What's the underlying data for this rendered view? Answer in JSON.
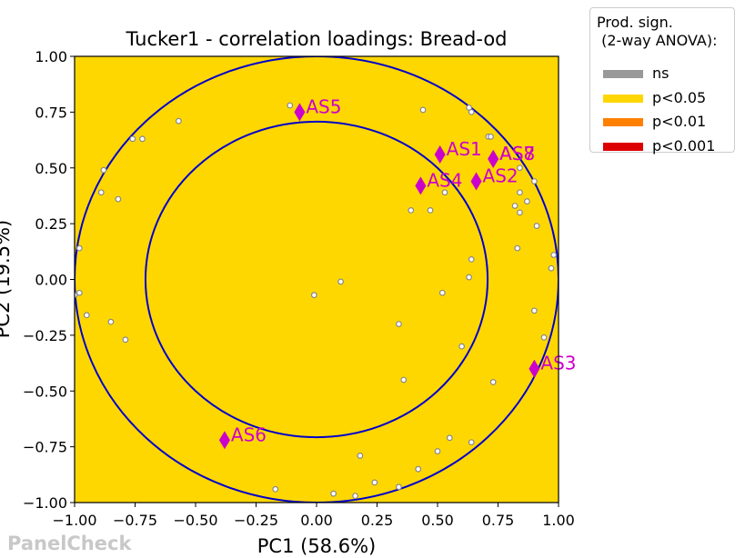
{
  "chart_data": {
    "type": "scatter",
    "title": "Tucker1 - correlation loadings: Bread-od",
    "xlabel": "PC1 (58.6%)",
    "ylabel": "PC2 (19.5%)",
    "xlim": [
      -1.0,
      1.0
    ],
    "ylim": [
      -1.0,
      1.0
    ],
    "xticks": [
      "−1.00",
      "−0.75",
      "−0.50",
      "−0.25",
      "0.00",
      "0.25",
      "0.50",
      "0.75",
      "1.00"
    ],
    "yticks": [
      "−1.00",
      "−0.75",
      "−0.50",
      "−0.25",
      "0.00",
      "0.25",
      "0.50",
      "0.75",
      "1.00"
    ],
    "background_color": "#FFD700",
    "circles": [
      {
        "radius": 1.0,
        "color": "#0000CC"
      },
      {
        "radius": 0.707,
        "color": "#0000CC"
      }
    ],
    "assessors": [
      {
        "label": "AS5",
        "x": -0.07,
        "y": 0.75
      },
      {
        "label": "AS1",
        "x": 0.51,
        "y": 0.56
      },
      {
        "label": "AS7",
        "x": 0.73,
        "y": 0.54
      },
      {
        "label": "AS8",
        "x": 0.73,
        "y": 0.54
      },
      {
        "label": "AS4",
        "x": 0.43,
        "y": 0.42
      },
      {
        "label": "AS2",
        "x": 0.66,
        "y": 0.44
      },
      {
        "label": "AS3",
        "x": 0.9,
        "y": -0.4
      },
      {
        "label": "AS6",
        "x": -0.38,
        "y": -0.72
      }
    ],
    "assessor_color": "#CC00CC",
    "attribute_points": [
      [
        -0.11,
        0.78
      ],
      [
        0.44,
        0.76
      ],
      [
        0.63,
        0.77
      ],
      [
        0.64,
        0.75
      ],
      [
        -0.57,
        0.71
      ],
      [
        -0.76,
        0.63
      ],
      [
        -0.72,
        0.63
      ],
      [
        0.71,
        0.64
      ],
      [
        0.72,
        0.64
      ],
      [
        -0.88,
        0.49
      ],
      [
        0.84,
        0.5
      ],
      [
        0.9,
        0.44
      ],
      [
        -0.89,
        0.39
      ],
      [
        -0.82,
        0.36
      ],
      [
        0.84,
        0.39
      ],
      [
        0.87,
        0.35
      ],
      [
        0.53,
        0.39
      ],
      [
        0.82,
        0.33
      ],
      [
        0.84,
        0.3
      ],
      [
        0.39,
        0.31
      ],
      [
        0.47,
        0.31
      ],
      [
        0.91,
        0.24
      ],
      [
        -0.98,
        0.14
      ],
      [
        0.83,
        0.14
      ],
      [
        0.98,
        0.11
      ],
      [
        0.64,
        0.09
      ],
      [
        0.97,
        0.05
      ],
      [
        0.63,
        0.01
      ],
      [
        0.1,
        -0.01
      ],
      [
        -0.01,
        -0.07
      ],
      [
        -0.98,
        -0.06
      ],
      [
        -1.0,
        -0.07
      ],
      [
        0.52,
        -0.06
      ],
      [
        -0.95,
        -0.16
      ],
      [
        -0.85,
        -0.19
      ],
      [
        0.34,
        -0.2
      ],
      [
        0.9,
        -0.14
      ],
      [
        -0.79,
        -0.27
      ],
      [
        0.94,
        -0.26
      ],
      [
        0.6,
        -0.3
      ],
      [
        0.36,
        -0.45
      ],
      [
        0.73,
        -0.46
      ],
      [
        0.64,
        -0.73
      ],
      [
        0.55,
        -0.71
      ],
      [
        0.5,
        -0.77
      ],
      [
        0.18,
        -0.79
      ],
      [
        0.42,
        -0.85
      ],
      [
        0.24,
        -0.91
      ],
      [
        0.34,
        -0.93
      ],
      [
        -0.17,
        -0.94
      ],
      [
        0.07,
        -0.96
      ],
      [
        0.16,
        -0.97
      ]
    ],
    "legend": {
      "title": "Prod. sign.\n (2-way ANOVA):",
      "placement": "outside-top-right",
      "items": [
        {
          "label": "ns",
          "color": "#999999"
        },
        {
          "label": "p<0.05",
          "color": "#FFD700"
        },
        {
          "label": "p<0.01",
          "color": "#FF8000"
        },
        {
          "label": "p<0.001",
          "color": "#DD0000"
        }
      ]
    },
    "grid": false
  },
  "watermark": "PanelCheck"
}
